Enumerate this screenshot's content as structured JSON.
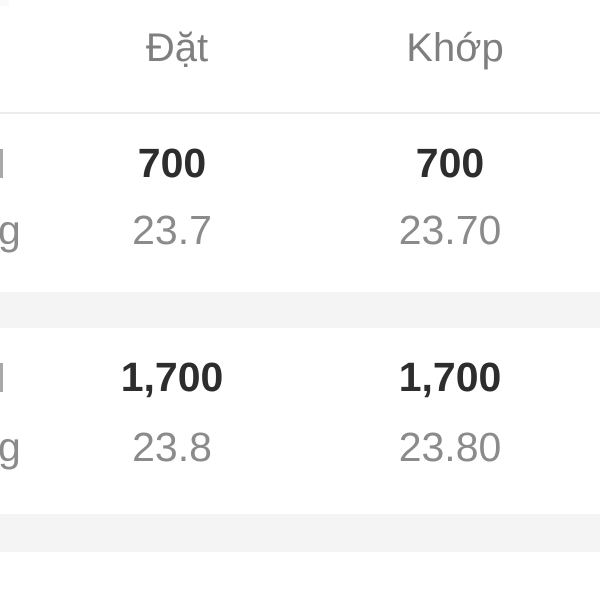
{
  "table": {
    "header": {
      "placed_label": "Đặt",
      "matched_label": "Khớp"
    },
    "rows": [
      {
        "left_label_fragment": "g",
        "placed_qty": "700",
        "matched_qty": "700",
        "placed_price": "23.7",
        "matched_price": "23.70"
      },
      {
        "left_label_fragment": "g",
        "placed_qty": "1,700",
        "matched_qty": "1,700",
        "placed_price": "23.8",
        "matched_price": "23.80"
      }
    ]
  },
  "colors": {
    "header_text": "#7f7f7f",
    "value_text": "#8b8b8b",
    "bold_text": "#2d2d2d",
    "separator_band": "#f4f4f4",
    "divider": "#ececec"
  }
}
